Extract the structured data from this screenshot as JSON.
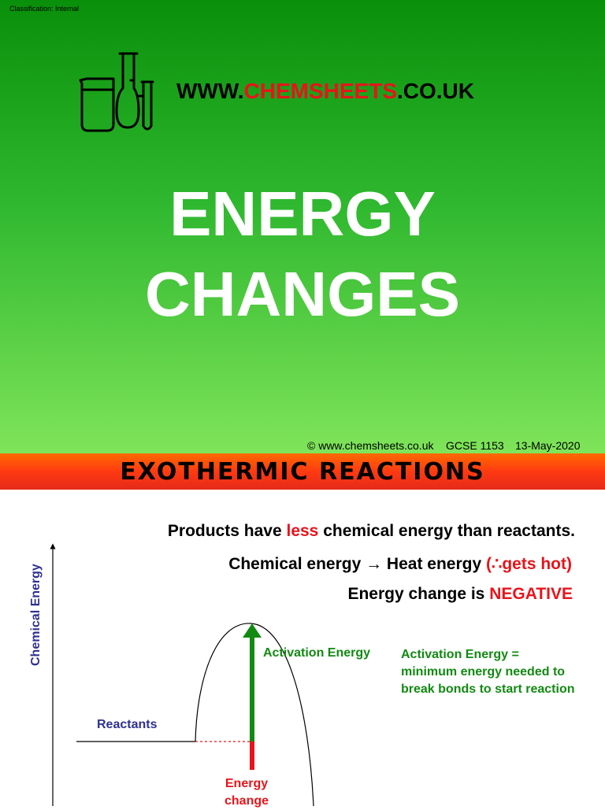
{
  "slide1": {
    "classification": "Classification: Internal",
    "site": {
      "prefix": "WWW.",
      "brand": "CHEMSHEETS",
      "suffix": ".CO.UK"
    },
    "title_line1": "ENERGY",
    "title_line2": "CHANGES",
    "footer": {
      "copyright": "© www.chemsheets.co.uk",
      "code": "GCSE 1153",
      "date": "13-May-2020"
    },
    "logo_icon": "lab-glassware-icon"
  },
  "slide2": {
    "title": "EXOTHERMIC REACTIONS",
    "statement1": {
      "before": "Products have ",
      "highlight": "less",
      "after": " chemical energy than reactants."
    },
    "statement2": {
      "before": "Chemical energy → Heat energy ",
      "highlight": "(∴gets hot)"
    },
    "statement3": {
      "before": "Energy change is ",
      "highlight": "NEGATIVE"
    },
    "diagram": {
      "y_axis_label": "Chemical  Energy",
      "reactants_label": "Reactants",
      "activation_label": "Activation Energy",
      "activation_definition": [
        "Activation Energy =",
        "minimum energy needed to",
        "break bonds to start reaction"
      ],
      "energy_change_label": [
        "Energy",
        "change"
      ]
    },
    "colors": {
      "accent_red": "#e8141b",
      "accent_green": "#128a12",
      "accent_blue": "#2e3191"
    }
  }
}
